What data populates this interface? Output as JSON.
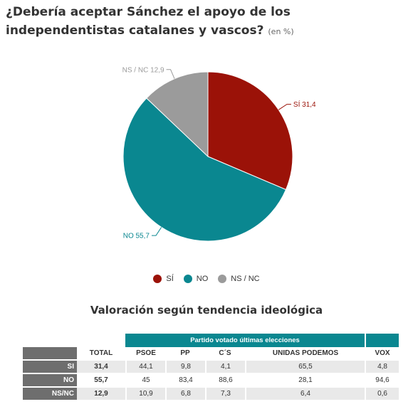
{
  "title": "¿Debería aceptar Sánchez el apoyo de los independentistas catalanes y vascos?",
  "title_unit": "(en %)",
  "chart_data": {
    "type": "pie",
    "title": "¿Debería aceptar Sánchez el apoyo de los independentistas catalanes y vascos?",
    "unit": "(en %)",
    "slices": [
      {
        "label": "SÍ",
        "value": 31.4,
        "value_text": "31,4",
        "color": "#9b1208"
      },
      {
        "label": "NO",
        "value": 55.7,
        "value_text": "55,7",
        "color": "#0a8790"
      },
      {
        "label": "NS / NC",
        "value": 12.9,
        "value_text": "12,9",
        "color": "#9b9b9b"
      }
    ],
    "legend_position": "bottom"
  },
  "table": {
    "title": "Valoración según tendencia ideológica",
    "group_header": "Partido votado últimas elecciones",
    "columns": [
      "TOTAL",
      "PSOE",
      "PP",
      "C´S",
      "UNIDAS PODEMOS",
      "VOX"
    ],
    "rows": [
      {
        "label": "SI",
        "values": [
          "31,4",
          "44,1",
          "9,8",
          "4,1",
          "65,5",
          "4,8"
        ]
      },
      {
        "label": "NO",
        "values": [
          "55,7",
          "45",
          "83,4",
          "88,6",
          "28,1",
          "94,6"
        ]
      },
      {
        "label": "NS/NC",
        "values": [
          "12,9",
          "10,9",
          "6,8",
          "7,3",
          "6,4",
          "0,6"
        ]
      }
    ]
  }
}
